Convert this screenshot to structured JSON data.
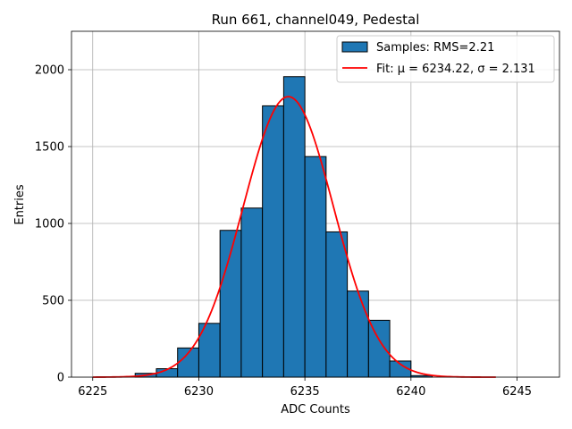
{
  "chart_data": {
    "type": "bar",
    "title": "Run 661, channel049, Pedestal",
    "xlabel": "ADC Counts",
    "ylabel": "Entries",
    "xlim": [
      6224,
      6247
    ],
    "ylim": [
      0,
      2250
    ],
    "xticks": [
      6225,
      6230,
      6235,
      6240,
      6245
    ],
    "yticks": [
      0,
      500,
      1000,
      1500,
      2000
    ],
    "grid": true,
    "legend_position": "top-right",
    "bins": [
      {
        "left": 6227,
        "right": 6228,
        "value": 25
      },
      {
        "left": 6228,
        "right": 6229,
        "value": 55
      },
      {
        "left": 6229,
        "right": 6230,
        "value": 190
      },
      {
        "left": 6230,
        "right": 6231,
        "value": 350
      },
      {
        "left": 6231,
        "right": 6232,
        "value": 955
      },
      {
        "left": 6232,
        "right": 6233,
        "value": 1100
      },
      {
        "left": 6233,
        "right": 6234,
        "value": 1765
      },
      {
        "left": 6234,
        "right": 6235,
        "value": 1955
      },
      {
        "left": 6235,
        "right": 6236,
        "value": 1435
      },
      {
        "left": 6236,
        "right": 6237,
        "value": 945
      },
      {
        "left": 6237,
        "right": 6238,
        "value": 560
      },
      {
        "left": 6238,
        "right": 6239,
        "value": 370
      },
      {
        "left": 6239,
        "right": 6240,
        "value": 105
      },
      {
        "left": 6240,
        "right": 6241,
        "value": 10
      }
    ],
    "fit": {
      "mu": 6234.22,
      "sigma": 2.131,
      "amplitude": 1825,
      "x_range": [
        6225,
        6244
      ]
    },
    "series": [
      {
        "name": "Samples: RMS=2.21",
        "kind": "histogram",
        "color": "#1f77b4"
      },
      {
        "name": "Fit: μ = 6234.22, σ = 2.131",
        "kind": "line",
        "color": "#ff0000"
      }
    ]
  }
}
